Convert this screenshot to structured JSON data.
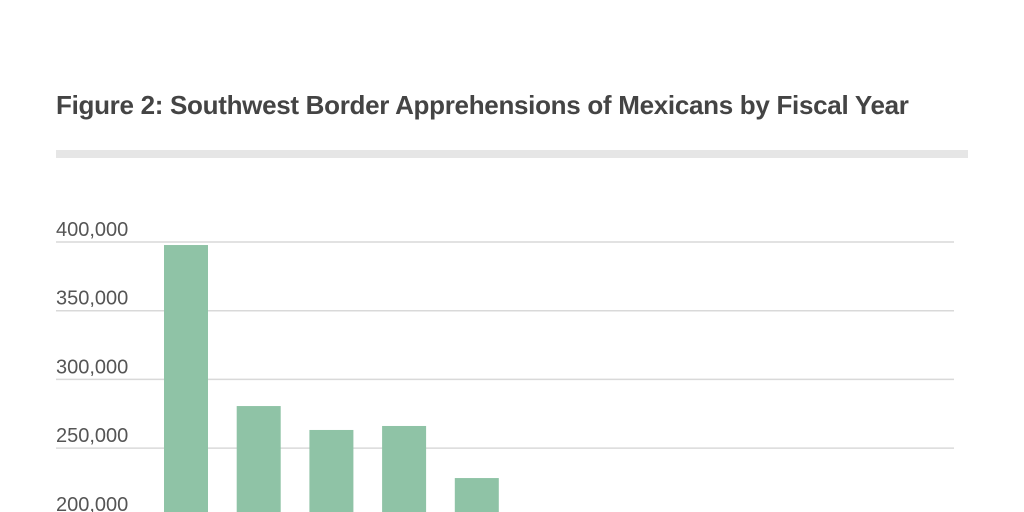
{
  "title": "Figure 2: Southwest Border Apprehensions of Mexicans by Fiscal Year",
  "colors": {
    "bar": "#8fc3a6",
    "grid": "#d9d9d9",
    "divider": "#e6e6e6",
    "title": "#444444"
  },
  "chart_data": {
    "type": "bar",
    "title": "Figure 2: Southwest Border Apprehensions of Mexicans by Fiscal Year",
    "xlabel": "",
    "ylabel": "",
    "values": [
      397800,
      280600,
      263200,
      266100,
      228200
    ],
    "yticks": [
      "400,000",
      "350,000",
      "300,000",
      "250,000",
      "200,000"
    ],
    "ytick_values": [
      400000,
      350000,
      300000,
      250000,
      200000
    ],
    "grid": true
  }
}
